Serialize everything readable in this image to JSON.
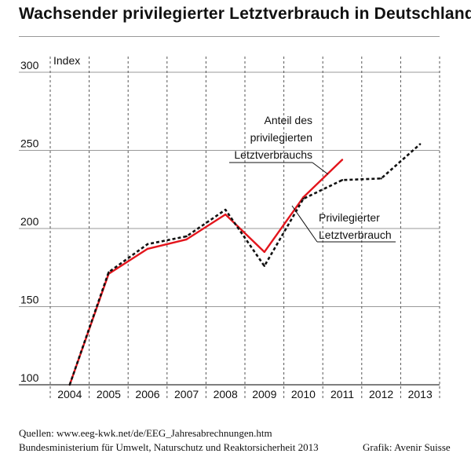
{
  "title": "Wachsender privilegierter Letztverbrauch in Deutschland",
  "sources": {
    "line1": "Quellen: www.eeg-kwk.net/de/EEG_Jahresabrechnungen.htm",
    "line2": "Bundesministerium für Umwelt, Naturschutz und Reaktorsicherheit 2013",
    "credit": "Grafik: Avenir Suisse"
  },
  "chart_data": {
    "type": "line",
    "categories": [
      "2004",
      "2005",
      "2006",
      "2007",
      "2008",
      "2009",
      "2010",
      "2011",
      "2012",
      "2013"
    ],
    "ylabel": "Index",
    "ylim": [
      100,
      300
    ],
    "yticks": [
      100,
      150,
      200,
      250,
      300
    ],
    "grid": true,
    "series": [
      {
        "name": "Anteil des privilegierten Letztverbrauchs",
        "label_lines": [
          "Anteil des",
          "privilegierten",
          "Letztverbrauchs"
        ],
        "style": "solid",
        "color": "#e3151c",
        "values": [
          100,
          171,
          187,
          193,
          209,
          185,
          220,
          244,
          null,
          null
        ]
      },
      {
        "name": "Privilegierter Letztverbrauch",
        "label_lines": [
          "Privilegierter",
          "Letztverbrauch"
        ],
        "style": "dashed",
        "color": "#111111",
        "values": [
          100,
          172,
          190,
          195,
          212,
          176,
          219,
          231,
          232,
          254
        ]
      }
    ]
  }
}
